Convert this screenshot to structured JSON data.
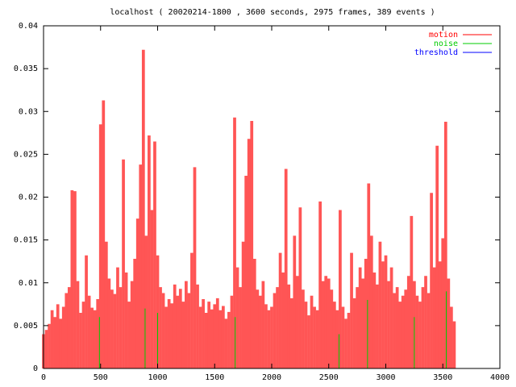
{
  "chart_data": {
    "type": "line",
    "title": "localhost ( 20020214-1800 , 3600 seconds, 2975 frames, 389 events )",
    "xlim": [
      0,
      4000
    ],
    "xticks": [
      0,
      500,
      1000,
      1500,
      2000,
      2500,
      3000,
      3500,
      4000
    ],
    "ylim": [
      0,
      0.04
    ],
    "yticks": [
      0,
      0.005,
      0.01,
      0.015,
      0.02,
      0.025,
      0.03,
      0.035,
      0.04
    ],
    "legend": "top-right",
    "series": [
      {
        "name": "motion",
        "color": "#ff0000",
        "fill": "#ff5555",
        "style": "impulses",
        "x": [
          0,
          25,
          50,
          75,
          100,
          125,
          150,
          175,
          200,
          225,
          250,
          275,
          300,
          325,
          350,
          375,
          400,
          425,
          450,
          475,
          500,
          525,
          550,
          575,
          600,
          625,
          650,
          675,
          700,
          725,
          750,
          775,
          800,
          825,
          850,
          875,
          900,
          925,
          950,
          975,
          1000,
          1025,
          1050,
          1075,
          1100,
          1125,
          1150,
          1175,
          1200,
          1225,
          1250,
          1275,
          1300,
          1325,
          1350,
          1375,
          1400,
          1425,
          1450,
          1475,
          1500,
          1525,
          1550,
          1575,
          1600,
          1625,
          1650,
          1675,
          1700,
          1725,
          1750,
          1775,
          1800,
          1825,
          1850,
          1875,
          1900,
          1925,
          1950,
          1975,
          2000,
          2025,
          2050,
          2075,
          2100,
          2125,
          2150,
          2175,
          2200,
          2225,
          2250,
          2275,
          2300,
          2325,
          2350,
          2375,
          2400,
          2425,
          2450,
          2475,
          2500,
          2525,
          2550,
          2575,
          2600,
          2625,
          2650,
          2675,
          2700,
          2725,
          2750,
          2775,
          2800,
          2825,
          2850,
          2875,
          2900,
          2925,
          2950,
          2975,
          3000,
          3025,
          3050,
          3075,
          3100,
          3125,
          3150,
          3175,
          3200,
          3225,
          3250,
          3275,
          3300,
          3325,
          3350,
          3375,
          3400,
          3425,
          3450,
          3475,
          3500,
          3525,
          3550,
          3575,
          3600
        ],
        "values": [
          0.004,
          0.0045,
          0.0052,
          0.0068,
          0.006,
          0.0075,
          0.0058,
          0.0072,
          0.0088,
          0.0095,
          0.0208,
          0.0207,
          0.0102,
          0.0065,
          0.0078,
          0.0132,
          0.0085,
          0.0071,
          0.0068,
          0.0081,
          0.0285,
          0.0313,
          0.0148,
          0.0105,
          0.0092,
          0.0087,
          0.0118,
          0.0095,
          0.0244,
          0.0112,
          0.0078,
          0.0102,
          0.0128,
          0.0175,
          0.0238,
          0.0372,
          0.0155,
          0.0272,
          0.0185,
          0.0265,
          0.0132,
          0.0095,
          0.0088,
          0.0072,
          0.0081,
          0.0076,
          0.0098,
          0.0085,
          0.0093,
          0.0078,
          0.0102,
          0.0088,
          0.0135,
          0.0235,
          0.0098,
          0.0072,
          0.0081,
          0.0065,
          0.0078,
          0.0069,
          0.0075,
          0.0082,
          0.0068,
          0.0073,
          0.0058,
          0.0066,
          0.0085,
          0.0293,
          0.0118,
          0.0095,
          0.0148,
          0.0225,
          0.0268,
          0.0289,
          0.0128,
          0.0092,
          0.0085,
          0.0102,
          0.0075,
          0.0068,
          0.0072,
          0.0088,
          0.0095,
          0.0135,
          0.0112,
          0.0233,
          0.0098,
          0.0082,
          0.0155,
          0.0108,
          0.0188,
          0.0092,
          0.0078,
          0.0062,
          0.0085,
          0.0072,
          0.0068,
          0.0195,
          0.0102,
          0.0108,
          0.0105,
          0.0092,
          0.0078,
          0.0068,
          0.0185,
          0.0072,
          0.0058,
          0.0065,
          0.0135,
          0.0082,
          0.0095,
          0.0118,
          0.0105,
          0.0128,
          0.0216,
          0.0155,
          0.0112,
          0.0098,
          0.0148,
          0.0125,
          0.0132,
          0.0102,
          0.0118,
          0.0088,
          0.0095,
          0.0078,
          0.0085,
          0.0092,
          0.0108,
          0.0178,
          0.0102,
          0.0085,
          0.0078,
          0.0095,
          0.0108,
          0.0088,
          0.0205,
          0.0118,
          0.026,
          0.0125,
          0.0152,
          0.0288,
          0.0105,
          0.0072,
          0.0055
        ]
      },
      {
        "name": "noise",
        "color": "#00cc00",
        "style": "impulses",
        "x": [
          490,
          890,
          1000,
          1680,
          2590,
          2840,
          3250,
          3530
        ],
        "values": [
          0.006,
          0.007,
          0.0065,
          0.006,
          0.004,
          0.008,
          0.006,
          0.009
        ]
      },
      {
        "name": "threshold",
        "color": "#0000ff",
        "style": "lines",
        "x": [
          0,
          3600
        ],
        "values": [
          0.005,
          0.005
        ]
      }
    ]
  }
}
